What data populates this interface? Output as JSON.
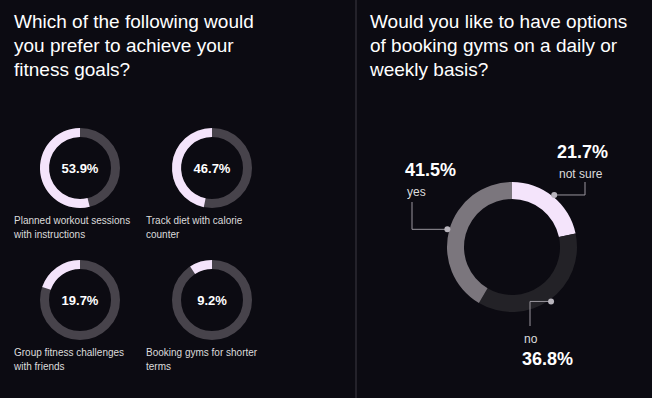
{
  "chart_data": [
    {
      "type": "donut_grid",
      "title": "Which of the following would you prefer to achieve your fitness goals?",
      "categories": [
        "Planned workout sessions with instructions",
        "Track diet with calorie counter",
        "Group fitness challenges with friends",
        "Booking gyms for shorter terms"
      ],
      "values": [
        53.9,
        46.7,
        19.7,
        9.2
      ],
      "value_labels": [
        "53.9%",
        "46.7%",
        "19.7%",
        "9.2%"
      ],
      "ylim": [
        0,
        100
      ],
      "data_labels": true,
      "color": "#f4e4fb"
    },
    {
      "type": "donut",
      "title": "Would you like to have options of booking gyms on a daily or weekly basis?",
      "categories": [
        "not sure",
        "no",
        "yes"
      ],
      "values": [
        21.7,
        36.8,
        41.5
      ],
      "value_labels": [
        "21.7%",
        "36.8%",
        "41.5%"
      ],
      "data_labels": true,
      "colors": [
        "#f4e4fb",
        "#232227",
        "#7b767d"
      ]
    }
  ]
}
